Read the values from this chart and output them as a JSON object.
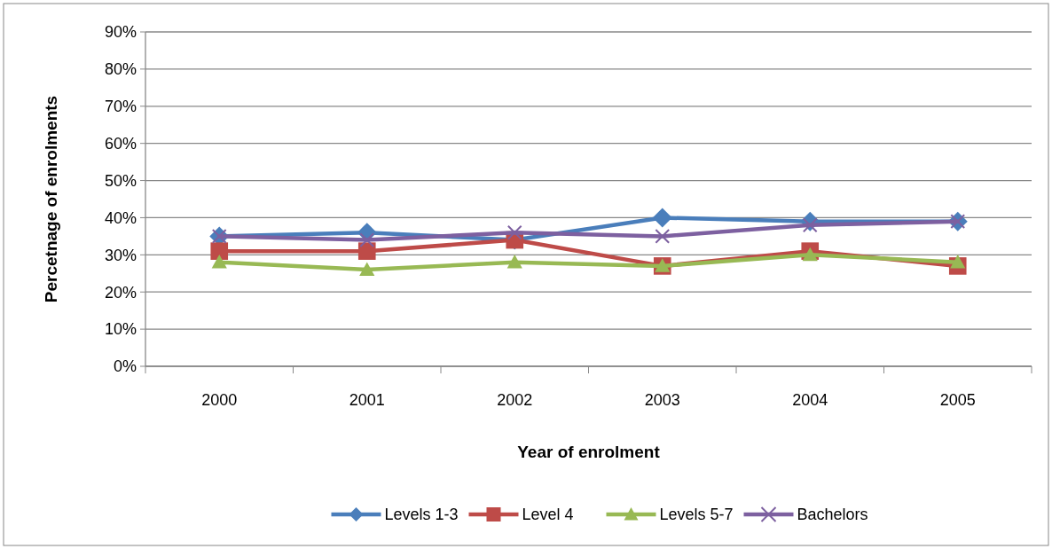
{
  "chart_data": {
    "type": "line",
    "xlabel": "Year of enrolment",
    "ylabel": "Percetnage of enrolments",
    "categories": [
      "2000",
      "2001",
      "2002",
      "2003",
      "2004",
      "2005"
    ],
    "series": [
      {
        "name": "Levels 1-3",
        "color": "#4a7ebb",
        "marker": "diamond",
        "values": [
          35,
          36,
          34,
          40,
          39,
          39
        ]
      },
      {
        "name": "Level 4",
        "color": "#be4b48",
        "marker": "square",
        "values": [
          31,
          31,
          34,
          27,
          31,
          27
        ]
      },
      {
        "name": "Levels 5-7",
        "color": "#98b954",
        "marker": "triangle",
        "values": [
          28,
          26,
          28,
          27,
          30,
          28
        ]
      },
      {
        "name": "Bachelors",
        "color": "#7d60a0",
        "marker": "cross",
        "values": [
          35,
          34,
          36,
          35,
          38,
          39
        ]
      }
    ],
    "ylim": [
      0,
      90
    ],
    "yticks": [
      {
        "value": 0,
        "label": "0%"
      },
      {
        "value": 10,
        "label": "10%"
      },
      {
        "value": 20,
        "label": "20%"
      },
      {
        "value": 30,
        "label": "30%"
      },
      {
        "value": 40,
        "label": "40%"
      },
      {
        "value": 50,
        "label": "50%"
      },
      {
        "value": 60,
        "label": "60%"
      },
      {
        "value": 70,
        "label": "70%"
      },
      {
        "value": 80,
        "label": "80%"
      },
      {
        "value": 90,
        "label": "90%"
      }
    ],
    "grid": "y",
    "legend": "bottom"
  }
}
